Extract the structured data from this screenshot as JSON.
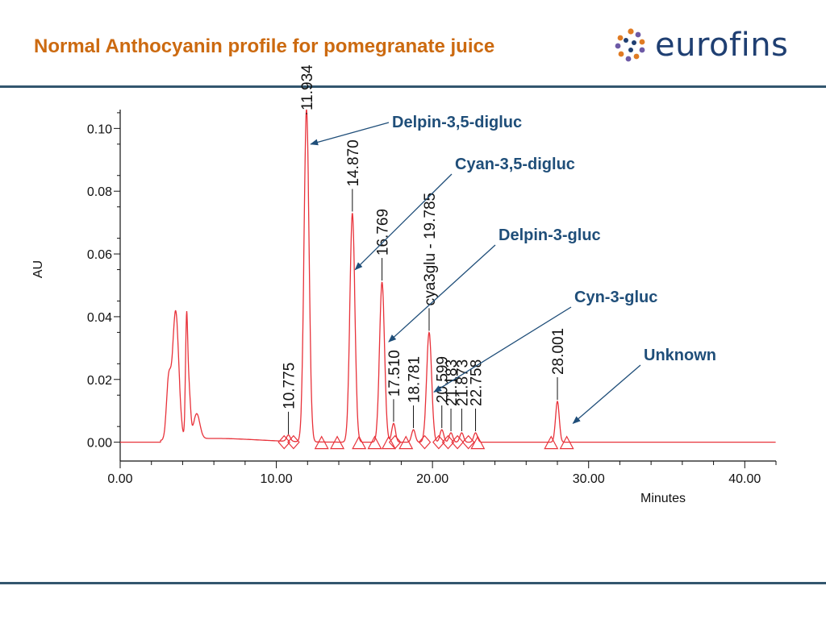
{
  "slide": {
    "title": "Normal Anthocyanin profile for pomegranate juice",
    "logo_text": "eurofins",
    "logo_icon": "eurofins-dots-logo",
    "title_color": "#cc6a10",
    "rule_color": "#33566e"
  },
  "chart_data": {
    "type": "line",
    "xlabel": "Minutes",
    "ylabel": "AU",
    "xlim": [
      0,
      42
    ],
    "ylim": [
      -0.006,
      0.106
    ],
    "x_ticks": [
      "0.00",
      "10.00",
      "20.00",
      "30.00",
      "40.00"
    ],
    "y_ticks": [
      "0.00",
      "0.02",
      "0.04",
      "0.06",
      "0.08",
      "0.10"
    ],
    "grid": false,
    "series_color": "#e8323a",
    "baseline": 0.0,
    "early_peaks": [
      {
        "x": 3.1,
        "y": 0.018,
        "w": 0.14
      },
      {
        "x": 3.55,
        "y": 0.041,
        "w": 0.2
      },
      {
        "x": 4.25,
        "y": 0.035,
        "w": 0.07
      },
      {
        "x": 4.4,
        "y": 0.016,
        "w": 0.1
      },
      {
        "x": 4.9,
        "y": 0.008,
        "w": 0.2
      }
    ],
    "peaks": [
      {
        "label": "10.775",
        "x": 10.775,
        "y": 0.002
      },
      {
        "label": "11.934",
        "x": 11.934,
        "y": 0.106
      },
      {
        "label": "14.870",
        "x": 14.87,
        "y": 0.073
      },
      {
        "label": "16.769",
        "x": 16.769,
        "y": 0.051
      },
      {
        "label": "17.510",
        "x": 17.51,
        "y": 0.006
      },
      {
        "label": "18.781",
        "x": 18.781,
        "y": 0.004
      },
      {
        "label": "cya3glu - 19.785",
        "x": 19.785,
        "y": 0.035
      },
      {
        "label": "20.599",
        "x": 20.599,
        "y": 0.004
      },
      {
        "label": "21.183",
        "x": 21.183,
        "y": 0.003
      },
      {
        "label": "21.873",
        "x": 21.873,
        "y": 0.003
      },
      {
        "label": "22.758",
        "x": 22.758,
        "y": 0.003
      },
      {
        "label": "28.001",
        "x": 28.001,
        "y": 0.013
      }
    ],
    "markers": [
      {
        "shape": "diamond",
        "x": 10.5
      },
      {
        "shape": "diamond",
        "x": 11.1
      },
      {
        "shape": "triangle",
        "x": 12.9
      },
      {
        "shape": "triangle",
        "x": 13.9
      },
      {
        "shape": "triangle",
        "x": 15.3
      },
      {
        "shape": "triangle",
        "x": 16.3
      },
      {
        "shape": "triangle",
        "x": 17.2
      },
      {
        "shape": "diamond",
        "x": 17.6
      },
      {
        "shape": "triangle",
        "x": 18.3
      },
      {
        "shape": "diamond",
        "x": 19.5
      },
      {
        "shape": "diamond",
        "x": 20.4
      },
      {
        "shape": "diamond",
        "x": 21.0
      },
      {
        "shape": "diamond",
        "x": 21.6
      },
      {
        "shape": "diamond",
        "x": 22.3
      },
      {
        "shape": "triangle",
        "x": 22.9
      },
      {
        "shape": "triangle",
        "x": 27.6
      },
      {
        "shape": "triangle",
        "x": 28.6
      }
    ],
    "annotations": [
      {
        "label": "Delpin-3,5-digluc",
        "x": 12.2,
        "y": 0.095
      },
      {
        "label": "Cyan-3,5-digluc",
        "x": 15.05,
        "y": 0.055
      },
      {
        "label": "Delpin-3-gluc",
        "x": 17.2,
        "y": 0.032
      },
      {
        "label": "Cyn-3-gluc",
        "x": 20.1,
        "y": 0.016
      },
      {
        "label": "Unknown",
        "x": 29.0,
        "y": 0.006
      }
    ]
  }
}
